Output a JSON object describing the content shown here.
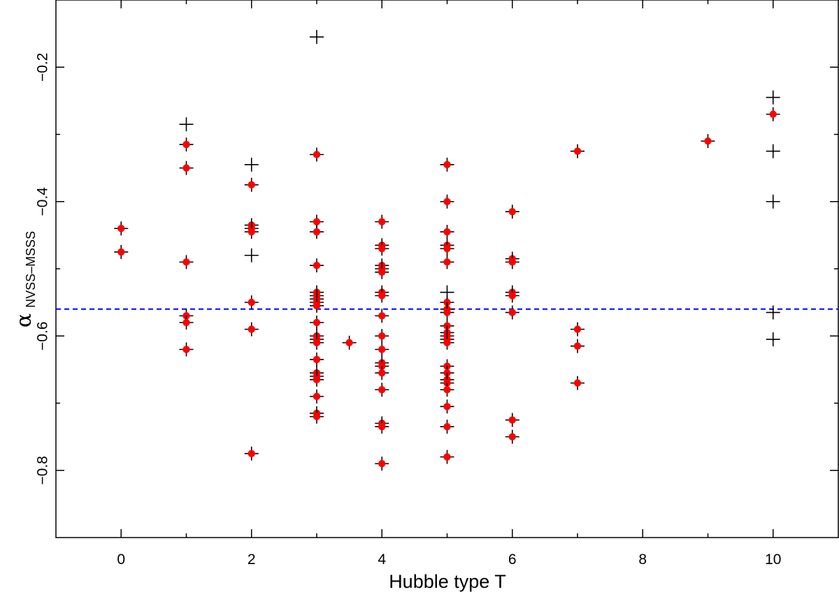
{
  "chart_data": {
    "type": "scatter",
    "xlabel": "Hubble type T",
    "ylabel_symbol": "α",
    "ylabel_subscript": "NVSS–MSSS",
    "xlim": [
      -1,
      11
    ],
    "ylim": [
      -0.9,
      -0.1
    ],
    "xticks": [
      0,
      2,
      4,
      6,
      8,
      10
    ],
    "yticks": [
      -0.8,
      -0.6,
      -0.4,
      -0.2
    ],
    "xtick_labels": [
      "0",
      "2",
      "4",
      "6",
      "8",
      "10"
    ],
    "ytick_labels": [
      "−0.8",
      "−0.6",
      "−0.4",
      "−0.2"
    ],
    "reference_line": {
      "y": -0.56,
      "style": "dashed",
      "color": "#0000ff"
    },
    "grid": false,
    "legend": "none",
    "series": [
      {
        "marker": "plus-with-red-dot",
        "color": "#ff0000",
        "points": [
          [
            0,
            -0.44
          ],
          [
            0,
            -0.475
          ],
          [
            1,
            -0.315
          ],
          [
            1,
            -0.35
          ],
          [
            1,
            -0.49
          ],
          [
            1,
            -0.57
          ],
          [
            1,
            -0.58
          ],
          [
            1,
            -0.62
          ],
          [
            2,
            -0.375
          ],
          [
            2,
            -0.435
          ],
          [
            2,
            -0.44
          ],
          [
            2,
            -0.445
          ],
          [
            2,
            -0.55
          ],
          [
            2,
            -0.59
          ],
          [
            2,
            -0.775
          ],
          [
            3,
            -0.33
          ],
          [
            3,
            -0.43
          ],
          [
            3,
            -0.445
          ],
          [
            3,
            -0.495
          ],
          [
            3,
            -0.535
          ],
          [
            3,
            -0.54
          ],
          [
            3,
            -0.545
          ],
          [
            3,
            -0.55
          ],
          [
            3,
            -0.555
          ],
          [
            3,
            -0.58
          ],
          [
            3,
            -0.6
          ],
          [
            3,
            -0.605
          ],
          [
            3,
            -0.61
          ],
          [
            3,
            -0.635
          ],
          [
            3,
            -0.655
          ],
          [
            3,
            -0.66
          ],
          [
            3,
            -0.665
          ],
          [
            3,
            -0.69
          ],
          [
            3,
            -0.715
          ],
          [
            3,
            -0.72
          ],
          [
            3.5,
            -0.61
          ],
          [
            4,
            -0.43
          ],
          [
            4,
            -0.465
          ],
          [
            4,
            -0.47
          ],
          [
            4,
            -0.495
          ],
          [
            4,
            -0.5
          ],
          [
            4,
            -0.505
          ],
          [
            4,
            -0.535
          ],
          [
            4,
            -0.54
          ],
          [
            4,
            -0.57
          ],
          [
            4,
            -0.6
          ],
          [
            4,
            -0.62
          ],
          [
            4,
            -0.64
          ],
          [
            4,
            -0.645
          ],
          [
            4,
            -0.655
          ],
          [
            4,
            -0.68
          ],
          [
            4,
            -0.73
          ],
          [
            4,
            -0.735
          ],
          [
            4,
            -0.79
          ],
          [
            5,
            -0.345
          ],
          [
            5,
            -0.4
          ],
          [
            5,
            -0.445
          ],
          [
            5,
            -0.465
          ],
          [
            5,
            -0.47
          ],
          [
            5,
            -0.49
          ],
          [
            5,
            -0.55
          ],
          [
            5,
            -0.56
          ],
          [
            5,
            -0.565
          ],
          [
            5,
            -0.585
          ],
          [
            5,
            -0.595
          ],
          [
            5,
            -0.6
          ],
          [
            5,
            -0.605
          ],
          [
            5,
            -0.61
          ],
          [
            5,
            -0.645
          ],
          [
            5,
            -0.655
          ],
          [
            5,
            -0.665
          ],
          [
            5,
            -0.67
          ],
          [
            5,
            -0.68
          ],
          [
            5,
            -0.705
          ],
          [
            5,
            -0.735
          ],
          [
            5,
            -0.78
          ],
          [
            6,
            -0.415
          ],
          [
            6,
            -0.485
          ],
          [
            6,
            -0.49
          ],
          [
            6,
            -0.535
          ],
          [
            6,
            -0.54
          ],
          [
            6,
            -0.565
          ],
          [
            6,
            -0.725
          ],
          [
            6,
            -0.75
          ],
          [
            7,
            -0.325
          ],
          [
            7,
            -0.59
          ],
          [
            7,
            -0.615
          ],
          [
            7,
            -0.67
          ],
          [
            9,
            -0.31
          ],
          [
            10,
            -0.27
          ]
        ]
      },
      {
        "marker": "plus",
        "color": "#000000",
        "points": [
          [
            1,
            -0.285
          ],
          [
            2,
            -0.345
          ],
          [
            2,
            -0.48
          ],
          [
            3,
            -0.155
          ],
          [
            5,
            -0.535
          ],
          [
            10,
            -0.245
          ],
          [
            10,
            -0.325
          ],
          [
            10,
            -0.4
          ],
          [
            10,
            -0.565
          ],
          [
            10,
            -0.605
          ]
        ]
      }
    ]
  }
}
